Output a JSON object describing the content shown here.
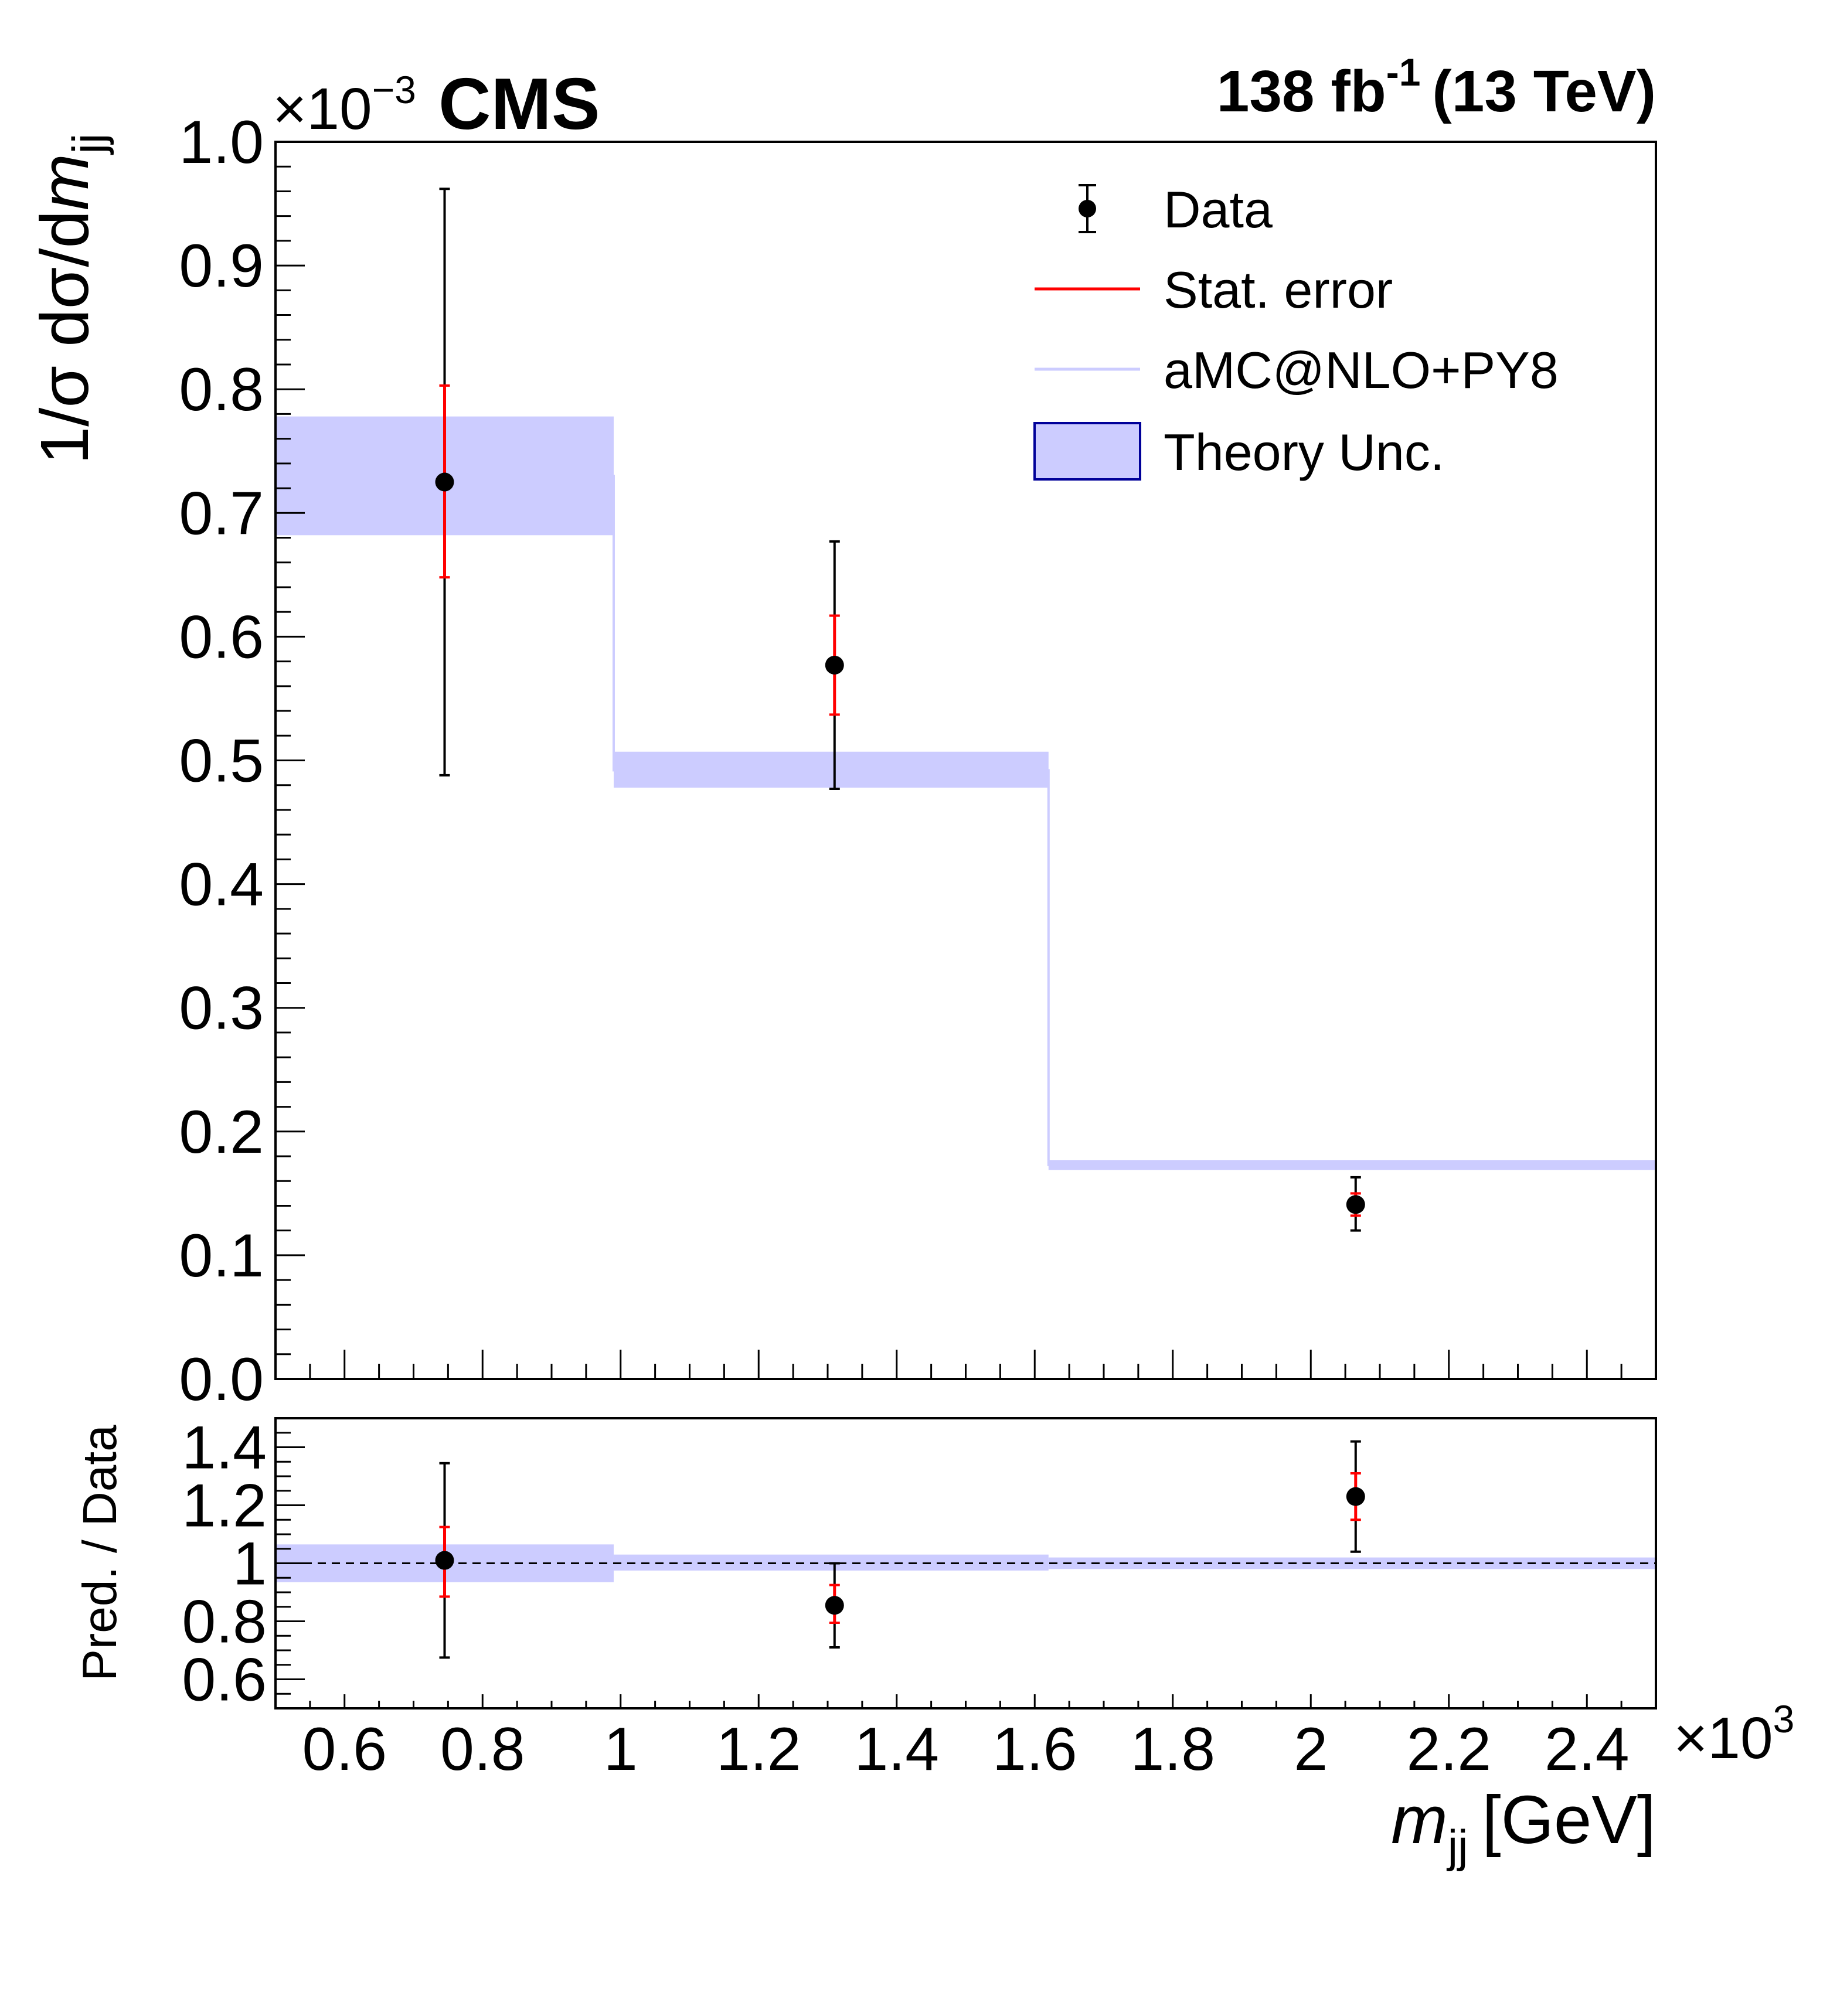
{
  "chart_data": [
    {
      "type": "histogram-with-points",
      "title": "",
      "experiment": "CMS",
      "luminosity": {
        "value": "138 fb",
        "exponent": "-1",
        "energy": "(13 TeV)"
      },
      "ylabel_parts": {
        "prefix": "1/σ dσ/d",
        "var": "m",
        "sub": "jj"
      },
      "y_multiplier": {
        "base": "×10",
        "exponent": "−3"
      },
      "xlim": [
        0.5,
        2.5
      ],
      "ylim": [
        0.0,
        1.0
      ],
      "y_ticks": [
        {
          "v": 0.0,
          "label": "0.0"
        },
        {
          "v": 0.1,
          "label": "0.1"
        },
        {
          "v": 0.2,
          "label": "0.2"
        },
        {
          "v": 0.3,
          "label": "0.3"
        },
        {
          "v": 0.4,
          "label": "0.4"
        },
        {
          "v": 0.5,
          "label": "0.5"
        },
        {
          "v": 0.6,
          "label": "0.6"
        },
        {
          "v": 0.7,
          "label": "0.7"
        },
        {
          "v": 0.8,
          "label": "0.8"
        },
        {
          "v": 0.9,
          "label": "0.9"
        },
        {
          "v": 1.0,
          "label": "1.0"
        }
      ],
      "bins": [
        {
          "xlow": 0.5,
          "xhigh": 0.99,
          "pred": 0.73,
          "unc_low": 0.682,
          "unc_high": 0.778
        },
        {
          "xlow": 0.99,
          "xhigh": 1.62,
          "pred": 0.492,
          "unc_low": 0.478,
          "unc_high": 0.507
        },
        {
          "xlow": 1.62,
          "xhigh": 2.5,
          "pred": 0.173,
          "unc_low": 0.169,
          "unc_high": 0.177
        }
      ],
      "data_points": [
        {
          "x": 0.745,
          "y": 0.725,
          "stat_low": 0.648,
          "stat_high": 0.803,
          "tot_low": 0.488,
          "tot_high": 0.962
        },
        {
          "x": 1.31,
          "y": 0.577,
          "stat_low": 0.537,
          "stat_high": 0.617,
          "tot_low": 0.477,
          "tot_high": 0.677
        },
        {
          "x": 2.065,
          "y": 0.141,
          "stat_low": 0.132,
          "stat_high": 0.15,
          "tot_low": 0.12,
          "tot_high": 0.163
        }
      ],
      "legend": [
        {
          "label": "Data",
          "kind": "marker"
        },
        {
          "label": "Stat. error",
          "kind": "line",
          "color": "#ff0000"
        },
        {
          "label": "aMC@NLO+PY8",
          "kind": "line",
          "color": "#ccccff"
        },
        {
          "label": "Theory Unc.",
          "kind": "box",
          "color": "#ccccff",
          "edge": "#000099"
        }
      ]
    },
    {
      "type": "ratio",
      "ylabel": "Pred. / Data",
      "xlabel_parts": {
        "var": "m",
        "sub": "jj",
        "unit": "[GeV]"
      },
      "x_multiplier": {
        "base": "×10",
        "exponent": "3"
      },
      "xlim": [
        0.5,
        2.5
      ],
      "ylim": [
        0.5,
        1.5
      ],
      "x_ticks": [
        {
          "v": 0.6,
          "label": "0.6"
        },
        {
          "v": 0.8,
          "label": "0.8"
        },
        {
          "v": 1.0,
          "label": "1"
        },
        {
          "v": 1.2,
          "label": "1.2"
        },
        {
          "v": 1.4,
          "label": "1.4"
        },
        {
          "v": 1.6,
          "label": "1.6"
        },
        {
          "v": 1.8,
          "label": "1.8"
        },
        {
          "v": 2.0,
          "label": "2"
        },
        {
          "v": 2.2,
          "label": "2.2"
        },
        {
          "v": 2.4,
          "label": "2.4"
        }
      ],
      "y_ticks": [
        {
          "v": 0.6,
          "label": "0.6"
        },
        {
          "v": 0.8,
          "label": "0.8"
        },
        {
          "v": 1.0,
          "label": "1"
        },
        {
          "v": 1.2,
          "label": "1.2"
        },
        {
          "v": 1.4,
          "label": "1.4"
        }
      ],
      "reference_line": 1.0,
      "bands": [
        {
          "xlow": 0.5,
          "xhigh": 0.99,
          "low": 0.935,
          "high": 1.065
        },
        {
          "xlow": 0.99,
          "xhigh": 1.62,
          "low": 0.975,
          "high": 1.03
        },
        {
          "xlow": 1.62,
          "xhigh": 2.5,
          "low": 0.98,
          "high": 1.02
        }
      ],
      "data_points": [
        {
          "x": 0.745,
          "y": 1.01,
          "stat_low": 0.885,
          "stat_high": 1.125,
          "tot_low": 0.675,
          "tot_high": 1.345
        },
        {
          "x": 1.31,
          "y": 0.855,
          "stat_low": 0.795,
          "stat_high": 0.925,
          "tot_low": 0.71,
          "tot_high": 1.0
        },
        {
          "x": 2.065,
          "y": 1.23,
          "stat_low": 1.15,
          "stat_high": 1.31,
          "tot_low": 1.04,
          "tot_high": 1.42
        }
      ]
    }
  ]
}
